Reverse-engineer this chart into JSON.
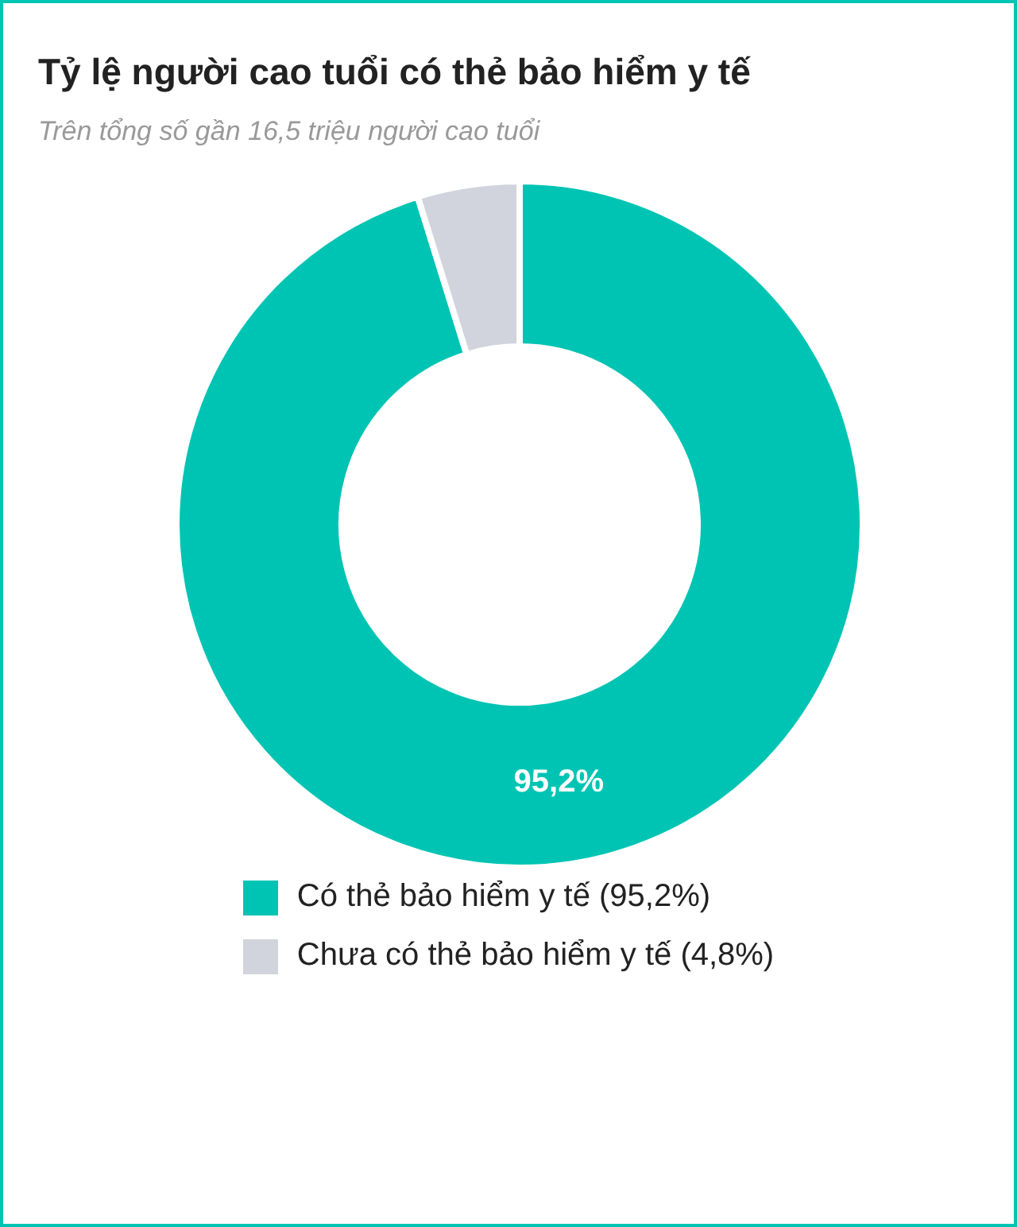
{
  "chart_data": {
    "type": "donut",
    "title": "Tỷ lệ người cao tuổi có thẻ bảo hiểm y tế",
    "subtitle": "Trên tổng số gần 16,5 triệu người cao tuổi",
    "categories": [
      "Có thẻ bảo hiểm y tế (95,2%)",
      "Chưa có thẻ bảo hiểm y tế (4,8%)"
    ],
    "values": [
      95.2,
      4.8
    ],
    "colors": [
      "#00c4b3",
      "#d1d4dc"
    ],
    "value_labels": [
      "95,2%",
      null
    ],
    "legend": "bottom"
  }
}
